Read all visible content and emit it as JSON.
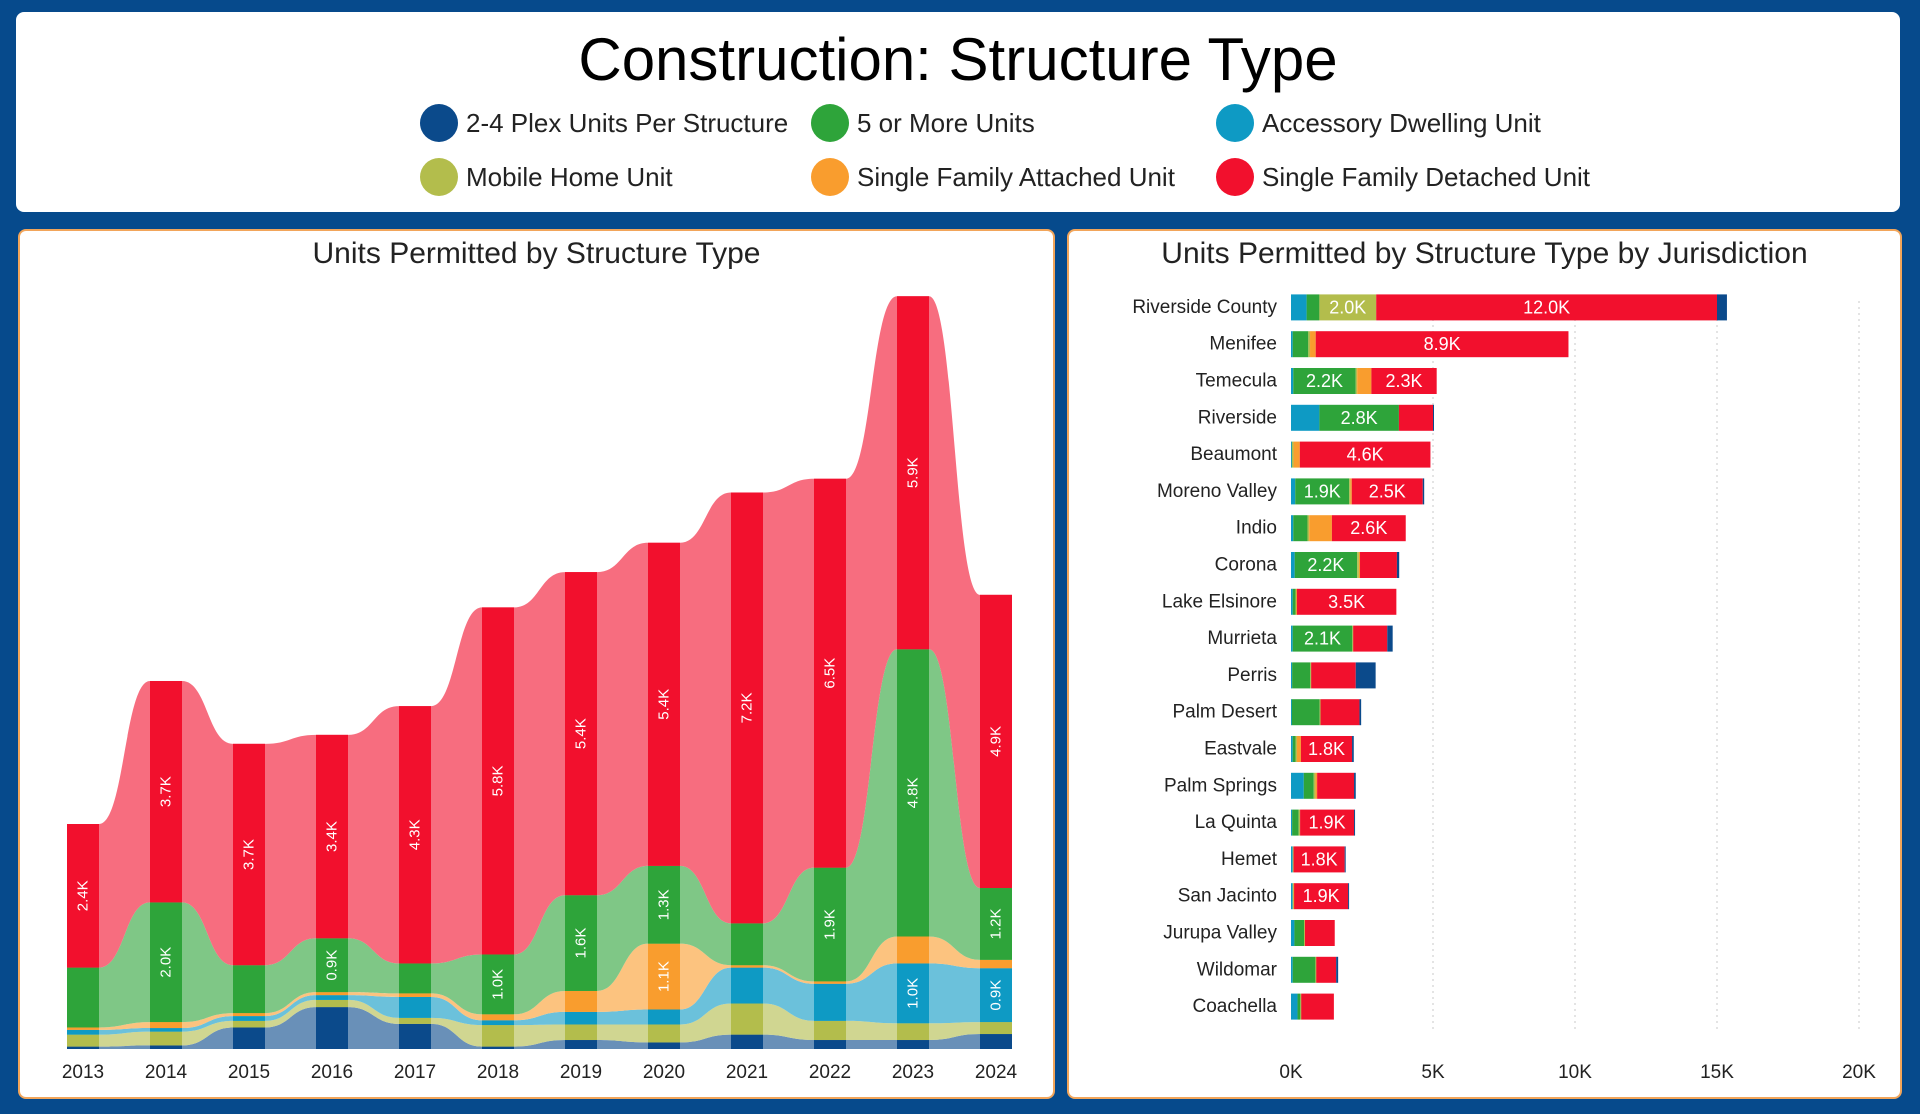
{
  "page_title": "Construction: Structure Type",
  "colors": {
    "plex": "#0b4a8b",
    "five_plus": "#2ea43a",
    "adu": "#0e9ac4",
    "mobile": "#b3bd4c",
    "sf_attached": "#f99d2e",
    "sf_detached": "#f2102d"
  },
  "legend": [
    {
      "key": "plex",
      "label": "2-4 Plex Units Per Structure"
    },
    {
      "key": "five_plus",
      "label": "5 or More Units"
    },
    {
      "key": "adu",
      "label": "Accessory Dwelling Unit"
    },
    {
      "key": "mobile",
      "label": "Mobile Home Unit"
    },
    {
      "key": "sf_attached",
      "label": "Single Family Attached Unit"
    },
    {
      "key": "sf_detached",
      "label": "Single Family Detached Unit"
    }
  ],
  "chart_data": [
    {
      "type": "area",
      "subtype": "stacked-ribbon",
      "title": "Units Permitted by Structure Type",
      "categories": [
        "2013",
        "2014",
        "2015",
        "2016",
        "2017",
        "2018",
        "2019",
        "2020",
        "2021",
        "2022",
        "2023",
        "2024"
      ],
      "series": [
        {
          "name": "2-4 Plex Units Per Structure",
          "key": "plex",
          "values": [
            40,
            60,
            360,
            700,
            420,
            40,
            150,
            110,
            240,
            150,
            150,
            250
          ]
        },
        {
          "name": "Mobile Home Unit",
          "key": "mobile",
          "values": [
            200,
            230,
            110,
            120,
            100,
            360,
            260,
            300,
            520,
            320,
            280,
            200
          ]
        },
        {
          "name": "Accessory Dwelling Unit",
          "key": "adu",
          "values": [
            80,
            60,
            80,
            80,
            350,
            80,
            210,
            250,
            600,
            620,
            1000,
            900
          ]
        },
        {
          "name": "Single Family Attached Unit",
          "key": "sf_attached",
          "values": [
            40,
            100,
            50,
            50,
            60,
            100,
            350,
            1100,
            40,
            40,
            450,
            140
          ]
        },
        {
          "name": "5 or More Units",
          "key": "five_plus",
          "values": [
            1000,
            2000,
            800,
            900,
            500,
            1000,
            1600,
            1300,
            700,
            1900,
            4800,
            1200
          ]
        },
        {
          "name": "Single Family Detached Unit",
          "key": "sf_detached",
          "values": [
            2400,
            3700,
            3700,
            3400,
            4300,
            5800,
            5400,
            5400,
            7200,
            6500,
            5900,
            4900
          ]
        }
      ],
      "labels": [
        [
          "2.4K"
        ],
        [
          "2.0K",
          "3.7K"
        ],
        [
          "3.7K"
        ],
        [
          "0.9K",
          "3.4K"
        ],
        [
          "4.3K"
        ],
        [
          "1.0K",
          "5.8K"
        ],
        [
          "1.6K",
          "5.4K"
        ],
        [
          "1.1K",
          "1.3K",
          "5.4K"
        ],
        [
          "7.2K"
        ],
        [
          "1.9K",
          "6.5K"
        ],
        [
          "1.0K",
          "4.8K",
          "5.9K"
        ],
        [
          "0.9K",
          "1.2K",
          "4.9K"
        ]
      ],
      "label_series": [
        [
          "sf_detached"
        ],
        [
          "five_plus",
          "sf_detached"
        ],
        [
          "sf_detached"
        ],
        [
          "five_plus",
          "sf_detached"
        ],
        [
          "sf_detached"
        ],
        [
          "five_plus",
          "sf_detached"
        ],
        [
          "five_plus",
          "sf_detached"
        ],
        [
          "sf_attached",
          "five_plus",
          "sf_detached"
        ],
        [
          "sf_detached"
        ],
        [
          "five_plus",
          "sf_detached"
        ],
        [
          "adu",
          "five_plus",
          "sf_detached"
        ],
        [
          "adu",
          "five_plus",
          "sf_detached"
        ]
      ],
      "xlabel": "",
      "ylabel": "",
      "ylim": [
        0,
        12500
      ]
    },
    {
      "type": "bar",
      "orientation": "horizontal",
      "stacked": true,
      "title": "Units Permitted by Structure Type by Jurisdiction",
      "categories": [
        "Riverside County",
        "Menifee",
        "Temecula",
        "Riverside",
        "Beaumont",
        "Moreno Valley",
        "Indio",
        "Corona",
        "Lake Elsinore",
        "Murrieta",
        "Perris",
        "Palm Desert",
        "Eastvale",
        "Palm Springs",
        "La Quinta",
        "Hemet",
        "San Jacinto",
        "Jurupa Valley",
        "Wildomar",
        "Coachella"
      ],
      "series_order": [
        "adu",
        "five_plus",
        "mobile",
        "sf_attached",
        "sf_detached",
        "plex"
      ],
      "series": [
        {
          "name": "Accessory Dwelling Unit",
          "key": "adu",
          "values": [
            550,
            60,
            80,
            1000,
            30,
            150,
            80,
            130,
            60,
            60,
            40,
            30,
            60,
            450,
            40,
            60,
            60,
            120,
            60,
            230
          ]
        },
        {
          "name": "5 or More Units",
          "key": "five_plus",
          "values": [
            450,
            550,
            2200,
            2800,
            0,
            1900,
            500,
            2200,
            100,
            2100,
            640,
            980,
            100,
            350,
            230,
            0,
            0,
            340,
            800,
            100
          ]
        },
        {
          "name": "Mobile Home Unit",
          "key": "mobile",
          "values": [
            2000,
            60,
            50,
            0,
            60,
            40,
            60,
            60,
            30,
            30,
            30,
            30,
            50,
            60,
            50,
            30,
            30,
            30,
            30,
            30
          ]
        },
        {
          "name": "Single Family Attached Unit",
          "key": "sf_attached",
          "values": [
            0,
            200,
            500,
            0,
            220,
            50,
            800,
            40,
            20,
            0,
            0,
            0,
            140,
            60,
            0,
            0,
            20,
            0,
            0,
            0
          ]
        },
        {
          "name": "Single Family Detached Unit",
          "key": "sf_detached",
          "values": [
            12000,
            8900,
            2300,
            1200,
            4600,
            2500,
            2600,
            1300,
            3500,
            1200,
            1570,
            1370,
            1800,
            1300,
            1900,
            1800,
            1900,
            1050,
            700,
            1150
          ]
        },
        {
          "name": "2-4 Plex Units Per Structure",
          "key": "plex",
          "values": [
            350,
            0,
            0,
            20,
            0,
            50,
            0,
            80,
            0,
            190,
            700,
            60,
            60,
            60,
            20,
            20,
            20,
            0,
            70,
            0
          ]
        }
      ],
      "bar_labels": [
        {
          "adu": "",
          "five_plus": "",
          "mobile": "2.0K",
          "sf_attached": "",
          "sf_detached": "12.0K",
          "plex": ""
        },
        {
          "sf_detached": "8.9K"
        },
        {
          "five_plus": "2.2K",
          "sf_detached": "2.3K"
        },
        {
          "five_plus": "2.8K"
        },
        {
          "sf_detached": "4.6K"
        },
        {
          "five_plus": "1.9K",
          "sf_detached": "2.5K"
        },
        {
          "sf_detached": "2.6K"
        },
        {
          "five_plus": "2.2K"
        },
        {
          "sf_detached": "3.5K"
        },
        {
          "five_plus": "2.1K"
        },
        {},
        {},
        {
          "sf_detached": "1.8K"
        },
        {},
        {
          "sf_detached": "1.9K"
        },
        {
          "sf_detached": "1.8K"
        },
        {
          "sf_detached": "1.9K"
        },
        {},
        {},
        {}
      ],
      "x_ticks": [
        "0K",
        "5K",
        "10K",
        "15K",
        "20K"
      ],
      "xlim": [
        0,
        20000
      ],
      "xlabel": "",
      "ylabel": ""
    }
  ]
}
